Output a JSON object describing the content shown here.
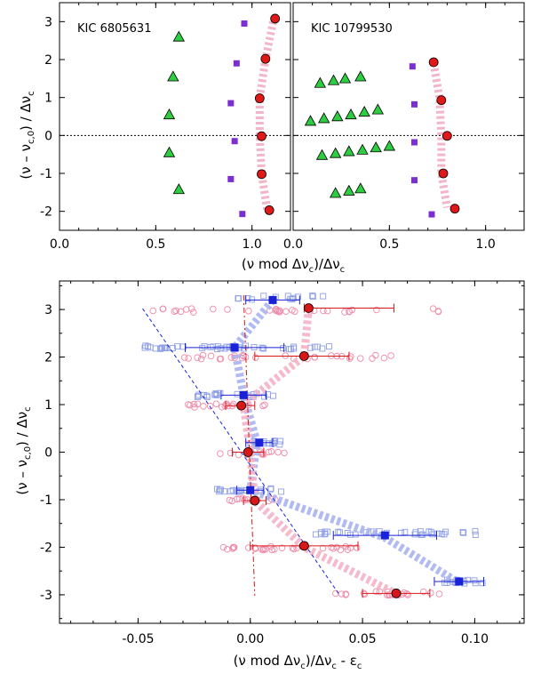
{
  "chart_data": [
    {
      "type": "scatter",
      "panel": "top-left",
      "star_label": "KIC 6805631",
      "xlim": [
        0.0,
        1.2
      ],
      "ylim": [
        -2.5,
        3.5
      ],
      "x_ticks": [
        "0.0",
        "0.5",
        "1.0"
      ],
      "y_ticks": [
        "3",
        "2",
        "1",
        "0",
        "-1",
        "-2"
      ],
      "y_tick_values": [
        3,
        2,
        1,
        0,
        -1,
        -2
      ],
      "x_tick_values": [
        0.0,
        0.5,
        1.0
      ],
      "ridge_color": "#f2b6c8",
      "ridge": [
        [
          1.11,
          3.0
        ],
        [
          1.07,
          2.0
        ],
        [
          1.04,
          1.0
        ],
        [
          1.04,
          0.0
        ],
        [
          1.05,
          -1.0
        ],
        [
          1.08,
          -2.0
        ]
      ],
      "series": [
        {
          "marker": "triangle",
          "color": "#2ecc40",
          "points": [
            [
              0.62,
              2.6
            ],
            [
              0.59,
              1.55
            ],
            [
              0.57,
              0.55
            ],
            [
              0.57,
              -0.45
            ],
            [
              0.62,
              -1.42
            ]
          ]
        },
        {
          "marker": "square",
          "color": "#7b2fd0",
          "points": [
            [
              0.96,
              2.95
            ],
            [
              0.92,
              1.9
            ],
            [
              0.89,
              0.85
            ],
            [
              0.91,
              -0.15
            ],
            [
              0.89,
              -1.15
            ],
            [
              0.95,
              -2.07
            ]
          ]
        },
        {
          "marker": "circle",
          "color": "#e01818",
          "points": [
            [
              1.12,
              3.08
            ],
            [
              1.07,
              2.02
            ],
            [
              1.04,
              0.98
            ],
            [
              1.05,
              -0.02
            ],
            [
              1.05,
              -1.02
            ],
            [
              1.09,
              -1.97
            ]
          ]
        }
      ]
    },
    {
      "type": "scatter",
      "panel": "top-right",
      "star_label": "KIC 10799530",
      "xlim": [
        0.0,
        1.2
      ],
      "ylim": [
        -2.5,
        3.5
      ],
      "x_ticks": [
        "0.0",
        "0.5",
        "1.0"
      ],
      "x_tick_values": [
        0.0,
        0.5,
        1.0
      ],
      "ridge_color": "#f2b6c8",
      "ridge": [
        [
          0.73,
          1.9
        ],
        [
          0.76,
          1.0
        ],
        [
          0.77,
          0.0
        ],
        [
          0.77,
          -1.0
        ],
        [
          0.8,
          -1.9
        ]
      ],
      "series": [
        {
          "marker": "triangle",
          "color": "#2ecc40",
          "points": [
            [
              0.14,
              1.38
            ],
            [
              0.21,
              1.45
            ],
            [
              0.27,
              1.5
            ],
            [
              0.35,
              1.55
            ],
            [
              0.09,
              0.38
            ],
            [
              0.16,
              0.45
            ],
            [
              0.23,
              0.5
            ],
            [
              0.3,
              0.55
            ],
            [
              0.37,
              0.62
            ],
            [
              0.44,
              0.68
            ],
            [
              0.15,
              -0.52
            ],
            [
              0.22,
              -0.47
            ],
            [
              0.29,
              -0.42
            ],
            [
              0.36,
              -0.38
            ],
            [
              0.43,
              -0.32
            ],
            [
              0.5,
              -0.28
            ],
            [
              0.22,
              -1.52
            ],
            [
              0.29,
              -1.46
            ],
            [
              0.35,
              -1.4
            ]
          ]
        },
        {
          "marker": "square",
          "color": "#7b2fd0",
          "points": [
            [
              0.62,
              1.82
            ],
            [
              0.63,
              0.82
            ],
            [
              0.63,
              -0.18
            ],
            [
              0.63,
              -1.18
            ],
            [
              0.72,
              -2.08
            ]
          ]
        },
        {
          "marker": "circle",
          "color": "#e01818",
          "points": [
            [
              0.73,
              1.93
            ],
            [
              0.77,
              0.93
            ],
            [
              0.8,
              -0.01
            ],
            [
              0.78,
              -1.0
            ],
            [
              0.84,
              -1.93
            ]
          ]
        }
      ]
    },
    {
      "type": "scatter",
      "panel": "bottom",
      "xlim": [
        -0.085,
        0.122
      ],
      "ylim": [
        -3.6,
        3.6
      ],
      "x_ticks": [
        "-0.05",
        "0.00",
        "0.05",
        "0.10"
      ],
      "x_tick_values": [
        -0.05,
        0.0,
        0.05,
        0.1
      ],
      "y_ticks": [
        "3",
        "2",
        "1",
        "0",
        "-1",
        "-2",
        "-3"
      ],
      "y_tick_values": [
        3,
        2,
        1,
        0,
        -1,
        -2,
        -3
      ],
      "blue_color": "#1a22d8",
      "blue_light": "#8fa0e8",
      "red_color": "#d81818",
      "red_light": "#f08aa8",
      "blue_ridge": [
        [
          0.01,
          3.2
        ],
        [
          -0.007,
          2.2
        ],
        [
          -0.003,
          1.2
        ],
        [
          0.003,
          0.2
        ],
        [
          0.0,
          -0.8
        ],
        [
          0.06,
          -1.8
        ],
        [
          0.093,
          -2.75
        ]
      ],
      "red_ridge": [
        [
          0.026,
          3.03
        ],
        [
          0.024,
          2.02
        ],
        [
          -0.003,
          1.0
        ],
        [
          0.0,
          0.0
        ],
        [
          0.002,
          -1.02
        ],
        [
          0.024,
          -2.0
        ],
        [
          0.065,
          -2.98
        ]
      ],
      "blue_means": [
        {
          "x": 0.01,
          "y": 3.2,
          "err": 0.012
        },
        {
          "x": -0.007,
          "y": 2.2,
          "err": 0.022
        },
        {
          "x": -0.003,
          "y": 1.2,
          "err": 0.01
        },
        {
          "x": 0.004,
          "y": 0.2,
          "err": 0.006
        },
        {
          "x": 0.0,
          "y": -0.8,
          "err": 0.006
        },
        {
          "x": 0.06,
          "y": -1.75,
          "err": 0.023
        },
        {
          "x": 0.093,
          "y": -2.72,
          "err": 0.011
        }
      ],
      "red_means": [
        {
          "x": 0.026,
          "y": 3.03,
          "errL": 0.002,
          "errR": 0.038
        },
        {
          "x": 0.024,
          "y": 2.02,
          "errL": 0.022,
          "errR": 0.02
        },
        {
          "x": -0.004,
          "y": 0.98,
          "errL": 0.007,
          "errR": 0.006
        },
        {
          "x": -0.001,
          "y": 0.0,
          "errL": 0.007,
          "errR": 0.007
        },
        {
          "x": 0.002,
          "y": -1.02,
          "errL": 0.005,
          "errR": 0.005
        },
        {
          "x": 0.024,
          "y": -1.97,
          "errL": 0.024,
          "errR": 0.024
        },
        {
          "x": 0.065,
          "y": -2.97,
          "errL": 0.015,
          "errR": 0.015
        }
      ],
      "blue_scatter": [
        {
          "y": 3.25,
          "x0": -0.006,
          "x1": 0.034,
          "n": 14
        },
        {
          "y": 2.2,
          "x0": -0.047,
          "x1": 0.038,
          "n": 44
        },
        {
          "y": 1.2,
          "x0": -0.024,
          "x1": 0.012,
          "n": 22
        },
        {
          "y": 0.2,
          "x0": -0.004,
          "x1": 0.014,
          "n": 14
        },
        {
          "y": -0.8,
          "x0": -0.016,
          "x1": 0.014,
          "n": 18
        },
        {
          "y": -1.7,
          "x0": 0.024,
          "x1": 0.102,
          "n": 34
        },
        {
          "y": -2.72,
          "x0": 0.083,
          "x1": 0.104,
          "n": 14
        }
      ],
      "red_scatter": [
        {
          "y": 2.98,
          "x0": -0.05,
          "x1": 0.09,
          "n": 34
        },
        {
          "y": 2.0,
          "x0": -0.03,
          "x1": 0.07,
          "n": 32
        },
        {
          "y": 0.98,
          "x0": -0.028,
          "x1": 0.01,
          "n": 20
        },
        {
          "y": -0.02,
          "x0": -0.015,
          "x1": 0.016,
          "n": 16
        },
        {
          "y": -1.0,
          "x0": -0.01,
          "x1": 0.012,
          "n": 12
        },
        {
          "y": -2.02,
          "x0": -0.016,
          "x1": 0.05,
          "n": 30
        },
        {
          "y": -2.97,
          "x0": 0.038,
          "x1": 0.09,
          "n": 22
        }
      ],
      "blue_dashed_line": [
        [
          -0.048,
          3.02
        ],
        [
          0.04,
          -3.02
        ]
      ],
      "red_dashdot_line": [
        [
          -0.003,
          3.3
        ],
        [
          0.002,
          -3.02
        ]
      ]
    }
  ],
  "labels": {
    "top_ylabel_main": "(ν – ν",
    "top_ylabel_sub": "c,0",
    "top_ylabel_rest": ") / Δν",
    "top_ylabel_sub2": "c",
    "top_xlabel_main": "(ν mod Δν",
    "top_xlabel_sub": "c",
    "top_xlabel_rest": ")/Δν",
    "top_xlabel_sub2": "c",
    "bottom_ylabel_main": "(ν – ν",
    "bottom_ylabel_sub": "c,0",
    "bottom_ylabel_rest": ") / Δν",
    "bottom_ylabel_sub2": "c",
    "bottom_xlabel_main": "(ν mod Δν",
    "bottom_xlabel_sub": "c",
    "bottom_xlabel_rest": ")/Δν",
    "bottom_xlabel_sub2": "c",
    "bottom_xlabel_tail": " - ε",
    "bottom_xlabel_sub3": "c"
  }
}
